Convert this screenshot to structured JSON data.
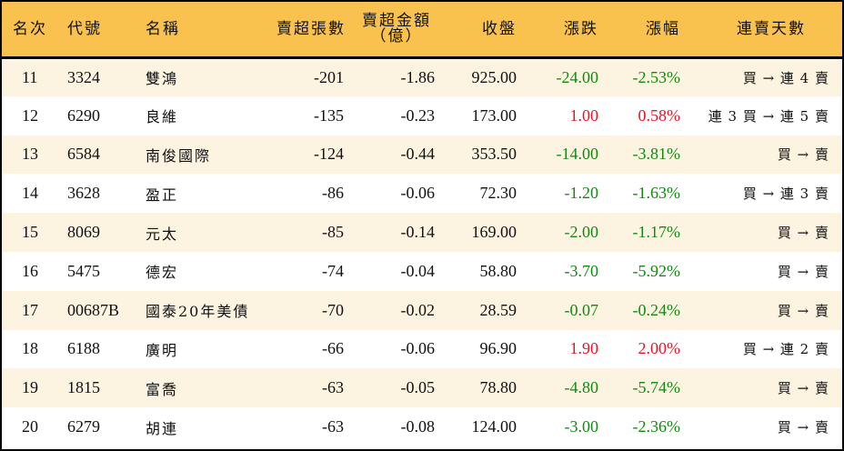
{
  "table": {
    "headers": {
      "rank": "名次",
      "code": "代號",
      "name": "名稱",
      "net_sell_shares": "賣超張數",
      "net_sell_amount_line1": "賣超金額",
      "net_sell_amount_line2": "（億）",
      "close": "收盤",
      "change": "漲跌",
      "change_pct": "漲幅",
      "streak": "連賣天數"
    },
    "colors": {
      "header_bg": "#F9C24E",
      "row_odd_bg": "#FDF3E1",
      "row_even_bg": "#FFFFFF",
      "down": "#128A12",
      "up": "#E8141E"
    },
    "rows": [
      {
        "rank": "11",
        "code": "3324",
        "name": "雙鴻",
        "shares": "-201",
        "amount": "-1.86",
        "close": "925.00",
        "change": "-24.00",
        "pct": "-2.53%",
        "direction": "down",
        "streak": "買 → 連 4 賣"
      },
      {
        "rank": "12",
        "code": "6290",
        "name": "良維",
        "shares": "-135",
        "amount": "-0.23",
        "close": "173.00",
        "change": "1.00",
        "pct": "0.58%",
        "direction": "up",
        "streak": "連 3 買 → 連 5 賣"
      },
      {
        "rank": "13",
        "code": "6584",
        "name": "南俊國際",
        "shares": "-124",
        "amount": "-0.44",
        "close": "353.50",
        "change": "-14.00",
        "pct": "-3.81%",
        "direction": "down",
        "streak": "買 → 賣"
      },
      {
        "rank": "14",
        "code": "3628",
        "name": "盈正",
        "shares": "-86",
        "amount": "-0.06",
        "close": "72.30",
        "change": "-1.20",
        "pct": "-1.63%",
        "direction": "down",
        "streak": "買 → 連 3 賣"
      },
      {
        "rank": "15",
        "code": "8069",
        "name": "元太",
        "shares": "-85",
        "amount": "-0.14",
        "close": "169.00",
        "change": "-2.00",
        "pct": "-1.17%",
        "direction": "down",
        "streak": "買 → 賣"
      },
      {
        "rank": "16",
        "code": "5475",
        "name": "德宏",
        "shares": "-74",
        "amount": "-0.04",
        "close": "58.80",
        "change": "-3.70",
        "pct": "-5.92%",
        "direction": "down",
        "streak": "買 → 賣"
      },
      {
        "rank": "17",
        "code": "00687B",
        "name": "國泰20年美債",
        "shares": "-70",
        "amount": "-0.02",
        "close": "28.59",
        "change": "-0.07",
        "pct": "-0.24%",
        "direction": "down",
        "streak": "買 → 賣"
      },
      {
        "rank": "18",
        "code": "6188",
        "name": "廣明",
        "shares": "-66",
        "amount": "-0.06",
        "close": "96.90",
        "change": "1.90",
        "pct": "2.00%",
        "direction": "up",
        "streak": "買 → 連 2 賣"
      },
      {
        "rank": "19",
        "code": "1815",
        "name": "富喬",
        "shares": "-63",
        "amount": "-0.05",
        "close": "78.80",
        "change": "-4.80",
        "pct": "-5.74%",
        "direction": "down",
        "streak": "買 → 賣"
      },
      {
        "rank": "20",
        "code": "6279",
        "name": "胡連",
        "shares": "-63",
        "amount": "-0.08",
        "close": "124.00",
        "change": "-3.00",
        "pct": "-2.36%",
        "direction": "down",
        "streak": "買 → 賣"
      }
    ]
  }
}
